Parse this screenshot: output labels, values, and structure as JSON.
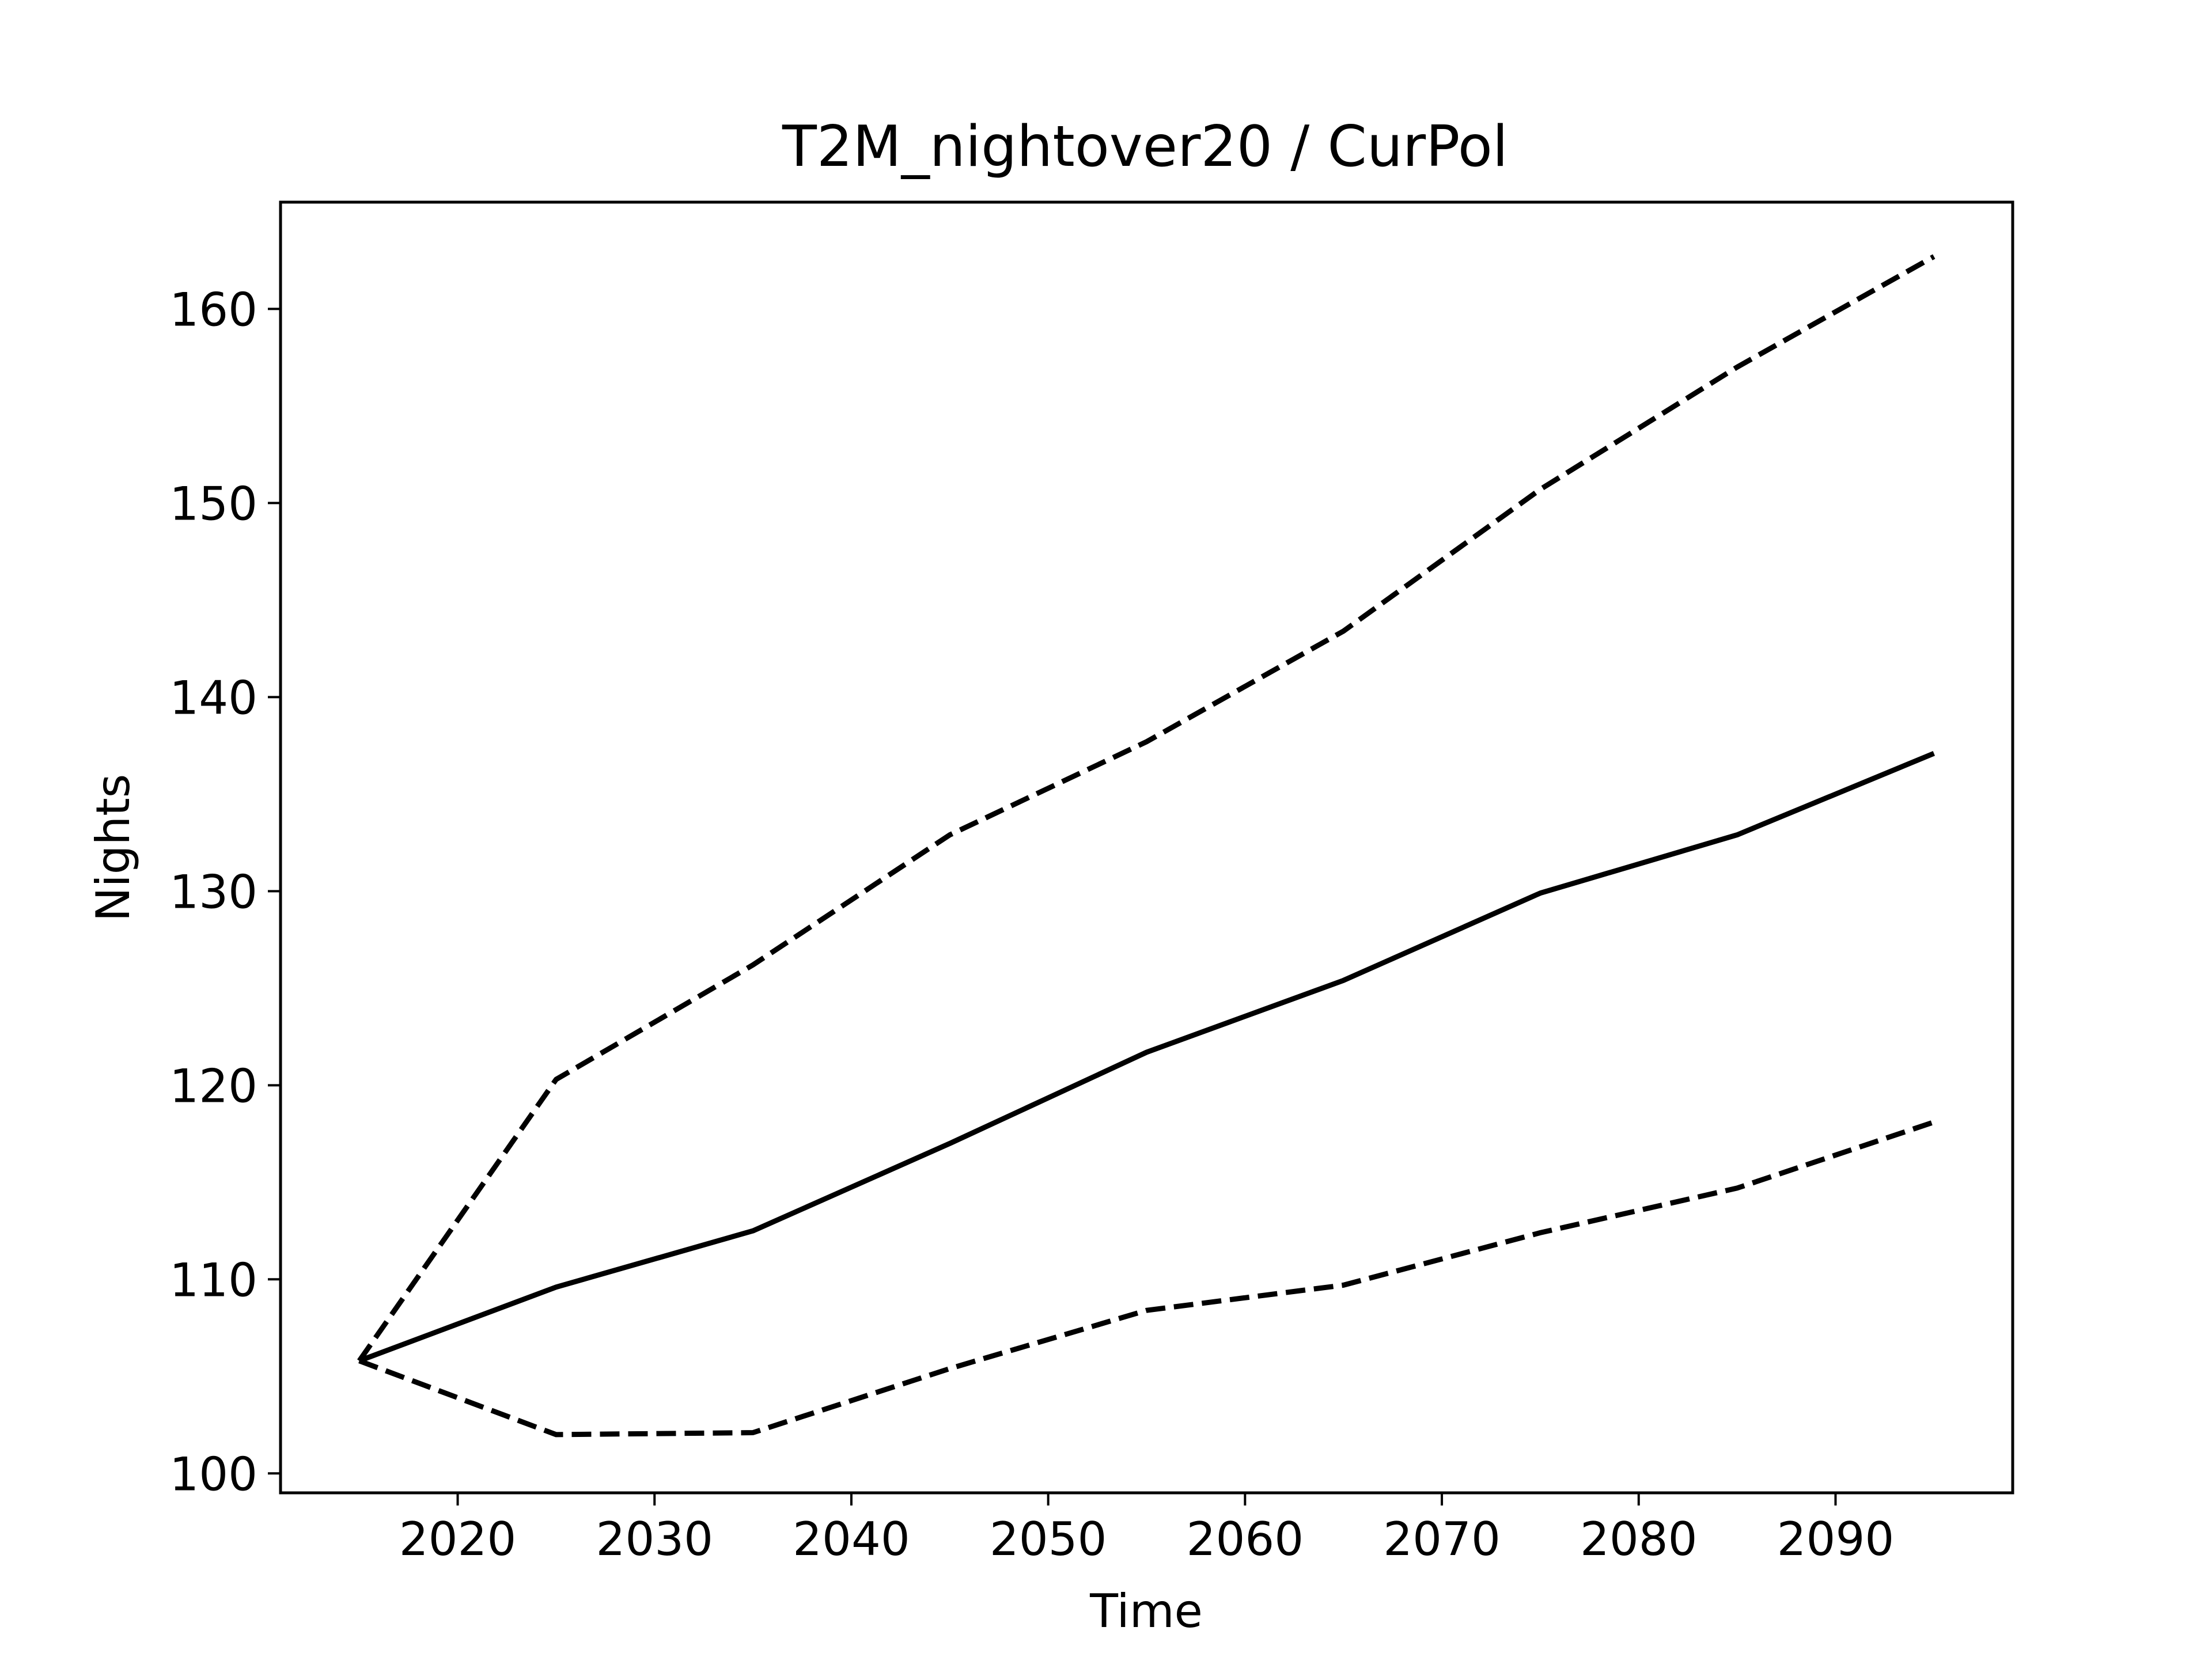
{
  "chart_data": {
    "type": "line",
    "title": "T2M_nightover20 / CurPol",
    "xlabel": "Time",
    "ylabel": "Nights",
    "xlim": [
      2011,
      2099
    ],
    "ylim": [
      99,
      165.5
    ],
    "xticks": [
      2020,
      2030,
      2040,
      2050,
      2060,
      2070,
      2080,
      2090
    ],
    "yticks": [
      100,
      110,
      120,
      130,
      140,
      150,
      160
    ],
    "x": [
      2015,
      2025,
      2035,
      2045,
      2055,
      2065,
      2075,
      2085,
      2095
    ],
    "series": [
      {
        "style": "dashed",
        "values": [
          105.8,
          120.3,
          126.2,
          132.9,
          137.7,
          143.4,
          150.7,
          157.0,
          162.7
        ]
      },
      {
        "style": "solid",
        "values": [
          105.8,
          109.6,
          112.5,
          117.0,
          121.7,
          125.4,
          129.9,
          132.9,
          137.1
        ]
      },
      {
        "style": "dashed",
        "values": [
          105.8,
          102.0,
          102.1,
          105.4,
          108.4,
          109.7,
          112.4,
          114.7,
          118.1
        ]
      }
    ],
    "grid": false,
    "line_color": "#000000"
  }
}
